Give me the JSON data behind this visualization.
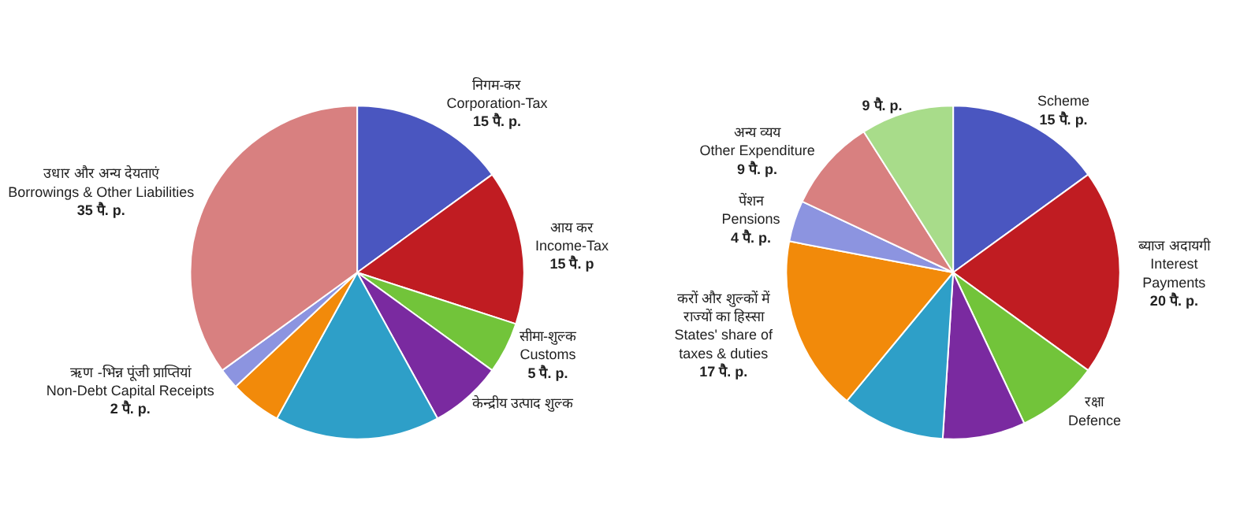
{
  "chart_data": [
    {
      "type": "pie",
      "categories": [
        "निगम-कर\nCorporation-Tax",
        "आय कर\nIncome-Tax",
        "सीमा-शुल्क\nCustoms",
        "केन्द्रीय उत्पाद शुल्क",
        null,
        null,
        "ऋण -भिन्न पूंजी प्राप्तियां\nNon-Debt Capital Receipts",
        "उधार और अन्य देयताएं\nBorrowings & Other Liabilities"
      ],
      "values": [
        15,
        15,
        5,
        7,
        16,
        5,
        2,
        35
      ],
      "value_labels": [
        "15 पै. p.",
        "15 पै. p",
        "5 पै. p.",
        null,
        null,
        null,
        "2 पै. p.",
        "35 पै. p."
      ],
      "colors": [
        "#4a56c0",
        "#c01c22",
        "#72c43a",
        "#7a2aa0",
        "#2e9fc8",
        "#f28a0a",
        "#8c94e0",
        "#d88080"
      ],
      "legend": false
    },
    {
      "type": "pie",
      "categories": [
        "Scheme",
        "ब्याज अदायगी\nInterest\nPayments",
        "रक्षा\nDefence",
        null,
        null,
        "करों और शुल्कों में\nराज्यों का हिस्सा\nStates' share of\ntaxes & duties",
        "पेंशन\nPensions",
        "अन्य व्यय\nOther Expenditure",
        null
      ],
      "values": [
        15,
        20,
        8,
        8,
        10,
        17,
        4,
        9,
        9
      ],
      "value_labels": [
        "15 पै. p.",
        "20 पै. p.",
        null,
        null,
        null,
        "17 पै. p.",
        "4 पै. p.",
        "9 पै. p.",
        "9 पै. p."
      ],
      "colors": [
        "#4a56c0",
        "#c01c22",
        "#72c43a",
        "#7a2aa0",
        "#2e9fc8",
        "#f28a0a",
        "#8c94e0",
        "#d88080",
        "#a8dc8a"
      ],
      "legend": false
    }
  ]
}
